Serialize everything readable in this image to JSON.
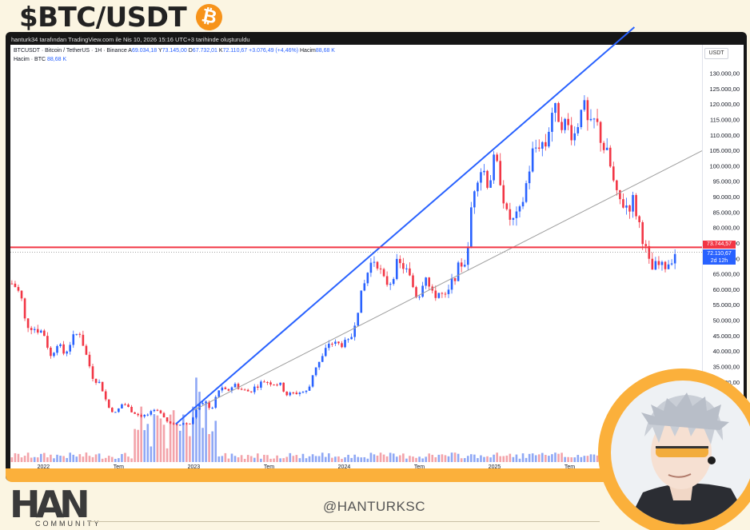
{
  "headline": {
    "title": "$BTC/USDT",
    "coin_symbol": "₿"
  },
  "colors": {
    "up": "#2962ff",
    "down": "#f23645",
    "accent": "#fbb03b",
    "trendline": "#2962ff",
    "support": "#9e9e9e"
  },
  "tradingview": {
    "caption": "hanturk34 tarafından TradingView.com ile Nis 10, 2026 15:16 UTC+3 tarihinde oluşturuldu",
    "symbol_line": "BTCUSDT · Bitcoin / TetherUS · 1H · Binance",
    "ohlc": {
      "a_label": "A",
      "a": "69.034,18",
      "y_label": "Y",
      "y": "73.145,00",
      "d_label": "D",
      "d": "67.732,01",
      "k_label": "K",
      "k": "72.110,67",
      "change": "+3.076,49 (+4,46%)",
      "vol_label": "Hacim",
      "vol": "88,68 K"
    },
    "volume_line": {
      "label": "Hacim · BTC",
      "value": "88,68 K"
    },
    "currency": "USDT",
    "price_labels": {
      "level": "73.744,57",
      "last": "72.110,67",
      "countdown": "2d 12h"
    }
  },
  "chart_data": {
    "type": "candlestick",
    "title": "$BTC/USDT",
    "y_ticks": [
      "130.000,00",
      "125.000,00",
      "120.000,00",
      "115.000,00",
      "110.000,00",
      "105.000,00",
      "100.000,00",
      "95.000,00",
      "90.000,00",
      "85.000,00",
      "80.000,00",
      "75.000,00",
      "70.000,00",
      "65.000,00",
      "60.000,00",
      "55.000,00",
      "50.000,00",
      "45.000,00",
      "40.000,00",
      "35.000,00",
      "30.000,00"
    ],
    "ylim": [
      17000,
      136000
    ],
    "x_ticks": [
      "2022",
      "Tem",
      "2023",
      "Tem",
      "2024",
      "Tem",
      "2025",
      "Tem"
    ],
    "x_tick_years": [
      2022.0,
      2022.5,
      2023.0,
      2023.5,
      2024.0,
      2024.5,
      2025.0,
      2025.5
    ],
    "xlim": [
      2021.78,
      2026.38
    ],
    "horizontal_level": 73744.57,
    "last_price": 72110.67,
    "trendlines": [
      {
        "color": "#2962ff",
        "points": [
          [
            2022.88,
            16500
          ],
          [
            2025.93,
            145000
          ]
        ]
      },
      {
        "color": "#9e9e9e",
        "points": [
          [
            2023.0,
            21000
          ],
          [
            2026.38,
            105000
          ]
        ]
      }
    ],
    "closes": [
      [
        2021.8,
        62000
      ],
      [
        2021.85,
        58000
      ],
      [
        2021.88,
        49000
      ],
      [
        2021.94,
        47500
      ],
      [
        2022.0,
        46300
      ],
      [
        2022.05,
        38000
      ],
      [
        2022.09,
        43000
      ],
      [
        2022.14,
        39000
      ],
      [
        2022.19,
        44000
      ],
      [
        2022.24,
        46500
      ],
      [
        2022.28,
        39500
      ],
      [
        2022.33,
        31500
      ],
      [
        2022.38,
        29500
      ],
      [
        2022.43,
        22000
      ],
      [
        2022.48,
        20000
      ],
      [
        2022.53,
        23500
      ],
      [
        2022.58,
        21000
      ],
      [
        2022.63,
        19500
      ],
      [
        2022.68,
        19200
      ],
      [
        2022.73,
        20500
      ],
      [
        2022.78,
        20600
      ],
      [
        2022.83,
        17000
      ],
      [
        2022.88,
        16500
      ],
      [
        2022.93,
        16800
      ],
      [
        2022.98,
        16600
      ],
      [
        2023.02,
        22000
      ],
      [
        2023.07,
        23500
      ],
      [
        2023.12,
        21500
      ],
      [
        2023.17,
        28000
      ],
      [
        2023.22,
        27000
      ],
      [
        2023.27,
        29500
      ],
      [
        2023.32,
        27500
      ],
      [
        2023.37,
        27000
      ],
      [
        2023.42,
        29000
      ],
      [
        2023.47,
        30500
      ],
      [
        2023.52,
        29800
      ],
      [
        2023.57,
        29500
      ],
      [
        2023.62,
        26000
      ],
      [
        2023.67,
        26500
      ],
      [
        2023.72,
        26900
      ],
      [
        2023.76,
        27000
      ],
      [
        2023.8,
        34500
      ],
      [
        2023.85,
        37500
      ],
      [
        2023.9,
        43000
      ],
      [
        2023.95,
        42300
      ],
      [
        2024.0,
        42500
      ],
      [
        2024.04,
        43000
      ],
      [
        2024.08,
        52000
      ],
      [
        2024.13,
        61000
      ],
      [
        2024.17,
        68000
      ],
      [
        2024.21,
        70500
      ],
      [
        2024.26,
        63000
      ],
      [
        2024.3,
        62000
      ],
      [
        2024.35,
        68000
      ],
      [
        2024.4,
        67500
      ],
      [
        2024.45,
        62000
      ],
      [
        2024.49,
        57000
      ],
      [
        2024.54,
        66000
      ],
      [
        2024.58,
        58000
      ],
      [
        2024.63,
        59000
      ],
      [
        2024.68,
        57000
      ],
      [
        2024.72,
        63000
      ],
      [
        2024.77,
        68000
      ],
      [
        2024.82,
        70000
      ],
      [
        2024.85,
        90000
      ],
      [
        2024.88,
        97000
      ],
      [
        2024.92,
        100000
      ],
      [
        2024.96,
        94000
      ],
      [
        2025.0,
        102000
      ],
      [
        2025.04,
        96000
      ],
      [
        2025.08,
        84000
      ],
      [
        2025.13,
        82000
      ],
      [
        2025.17,
        85000
      ],
      [
        2025.21,
        94000
      ],
      [
        2025.25,
        104000
      ],
      [
        2025.3,
        108000
      ],
      [
        2025.34,
        107000
      ],
      [
        2025.38,
        118000
      ],
      [
        2025.42,
        117000
      ],
      [
        2025.46,
        114000
      ],
      [
        2025.5,
        112000
      ],
      [
        2025.54,
        110000
      ],
      [
        2025.58,
        122000
      ],
      [
        2025.63,
        111000
      ],
      [
        2025.67,
        115000
      ],
      [
        2025.72,
        107000
      ],
      [
        2025.76,
        102000
      ],
      [
        2025.81,
        90000
      ],
      [
        2025.85,
        88000
      ],
      [
        2025.89,
        87000
      ],
      [
        2025.92,
        89000
      ],
      [
        2025.96,
        82000
      ],
      [
        2026.0,
        74000
      ],
      [
        2026.04,
        66000
      ],
      [
        2026.08,
        68000
      ],
      [
        2026.12,
        67000
      ],
      [
        2026.16,
        69000
      ],
      [
        2026.2,
        72110
      ]
    ]
  },
  "branding": {
    "logo_text": "HAN",
    "logo_sub": "COMMUNITY",
    "handle": "@HANTURKSC"
  }
}
